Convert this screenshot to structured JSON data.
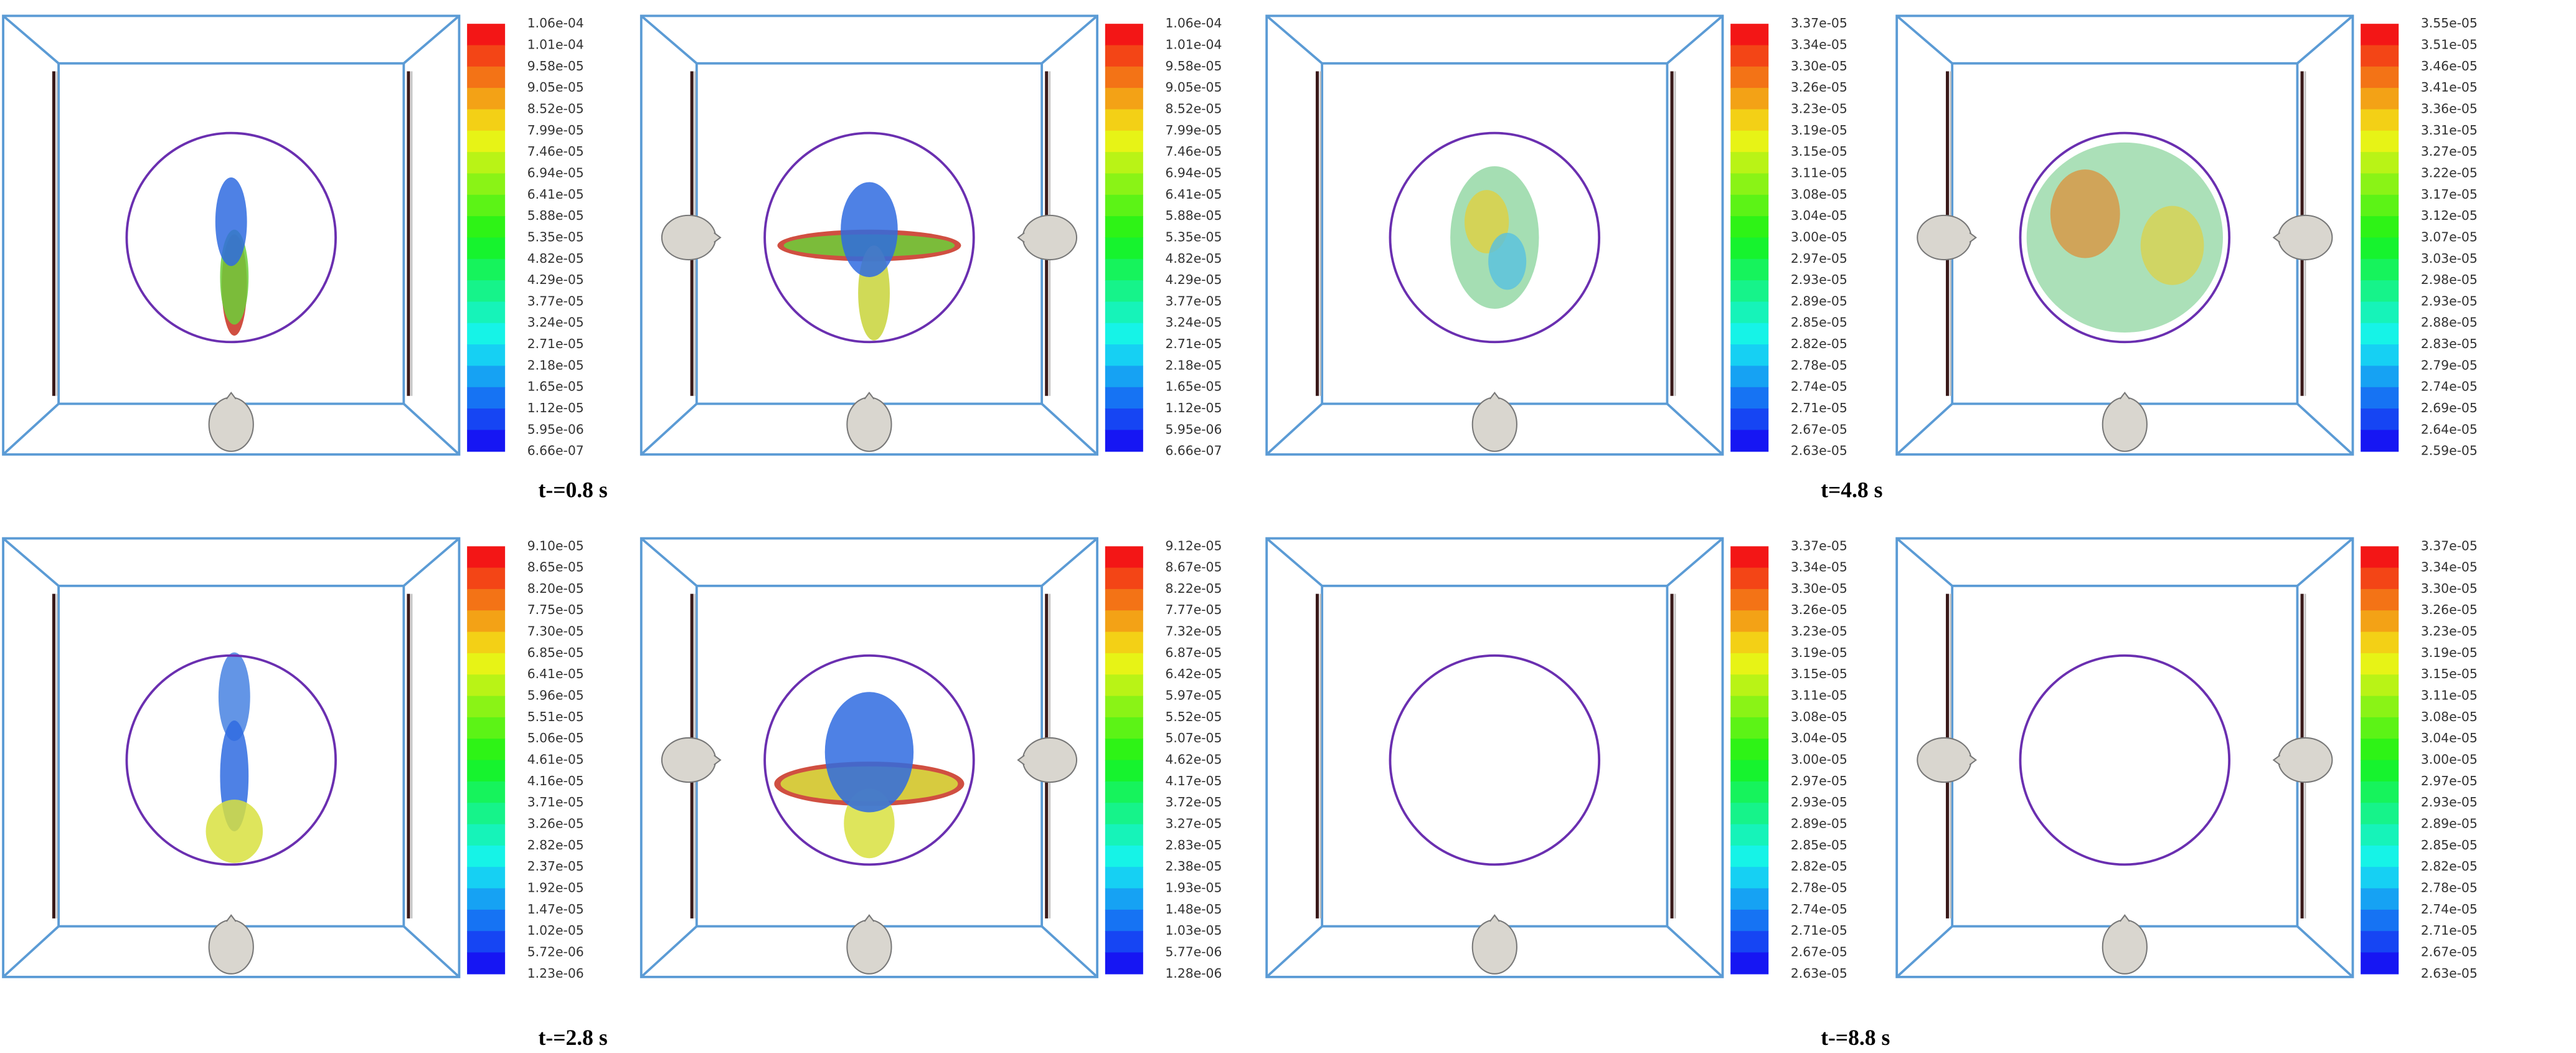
{
  "panels": [
    {
      "colorbar": [
        "1.06e-04",
        "1.01e-04",
        "9.58e-05",
        "9.05e-05",
        "8.52e-05",
        "7.99e-05",
        "7.46e-05",
        "6.94e-05",
        "6.41e-05",
        "5.88e-05",
        "5.35e-05",
        "4.82e-05",
        "4.29e-05",
        "3.77e-05",
        "3.24e-05",
        "2.71e-05",
        "2.18e-05",
        "1.65e-05",
        "1.12e-05",
        "5.95e-06",
        "6.66e-07"
      ]
    },
    {
      "colorbar": [
        "1.06e-04",
        "1.01e-04",
        "9.58e-05",
        "9.05e-05",
        "8.52e-05",
        "7.99e-05",
        "7.46e-05",
        "6.94e-05",
        "6.41e-05",
        "5.88e-05",
        "5.35e-05",
        "4.82e-05",
        "4.29e-05",
        "3.77e-05",
        "3.24e-05",
        "2.71e-05",
        "2.18e-05",
        "1.65e-05",
        "1.12e-05",
        "5.95e-06",
        "6.66e-07"
      ]
    },
    {
      "colorbar": [
        "3.37e-05",
        "3.34e-05",
        "3.30e-05",
        "3.26e-05",
        "3.23e-05",
        "3.19e-05",
        "3.15e-05",
        "3.11e-05",
        "3.08e-05",
        "3.04e-05",
        "3.00e-05",
        "2.97e-05",
        "2.93e-05",
        "2.89e-05",
        "2.85e-05",
        "2.82e-05",
        "2.78e-05",
        "2.74e-05",
        "2.71e-05",
        "2.67e-05",
        "2.63e-05"
      ]
    },
    {
      "colorbar": [
        "3.55e-05",
        "3.51e-05",
        "3.46e-05",
        "3.41e-05",
        "3.36e-05",
        "3.31e-05",
        "3.27e-05",
        "3.22e-05",
        "3.17e-05",
        "3.12e-05",
        "3.07e-05",
        "3.03e-05",
        "2.98e-05",
        "2.93e-05",
        "2.88e-05",
        "2.83e-05",
        "2.79e-05",
        "2.74e-05",
        "2.69e-05",
        "2.64e-05",
        "2.59e-05"
      ]
    },
    {
      "colorbar": [
        "9.10e-05",
        "8.65e-05",
        "8.20e-05",
        "7.75e-05",
        "7.30e-05",
        "6.85e-05",
        "6.41e-05",
        "5.96e-05",
        "5.51e-05",
        "5.06e-05",
        "4.61e-05",
        "4.16e-05",
        "3.71e-05",
        "3.26e-05",
        "2.82e-05",
        "2.37e-05",
        "1.92e-05",
        "1.47e-05",
        "1.02e-05",
        "5.72e-06",
        "1.23e-06"
      ]
    },
    {
      "colorbar": [
        "9.12e-05",
        "8.67e-05",
        "8.22e-05",
        "7.77e-05",
        "7.32e-05",
        "6.87e-05",
        "6.42e-05",
        "5.97e-05",
        "5.52e-05",
        "5.07e-05",
        "4.62e-05",
        "4.17e-05",
        "3.72e-05",
        "3.27e-05",
        "2.83e-05",
        "2.38e-05",
        "1.93e-05",
        "1.48e-05",
        "1.03e-05",
        "5.77e-06",
        "1.28e-06"
      ]
    },
    {
      "colorbar": [
        "3.37e-05",
        "3.34e-05",
        "3.30e-05",
        "3.26e-05",
        "3.23e-05",
        "3.19e-05",
        "3.15e-05",
        "3.11e-05",
        "3.08e-05",
        "3.04e-05",
        "3.00e-05",
        "2.97e-05",
        "2.93e-05",
        "2.89e-05",
        "2.85e-05",
        "2.82e-05",
        "2.78e-05",
        "2.74e-05",
        "2.71e-05",
        "2.67e-05",
        "2.63e-05"
      ]
    },
    {
      "colorbar": [
        "3.37e-05",
        "3.34e-05",
        "3.30e-05",
        "3.26e-05",
        "3.23e-05",
        "3.19e-05",
        "3.15e-05",
        "3.11e-05",
        "3.08e-05",
        "3.04e-05",
        "3.00e-05",
        "2.97e-05",
        "2.93e-05",
        "2.89e-05",
        "2.85e-05",
        "2.82e-05",
        "2.78e-05",
        "2.74e-05",
        "2.71e-05",
        "2.67e-05",
        "2.63e-05"
      ]
    }
  ],
  "captions": [
    "t-=0.8 s",
    "t=4.8 s",
    "t-=2.8 s",
    "t-=8.8 s"
  ]
}
